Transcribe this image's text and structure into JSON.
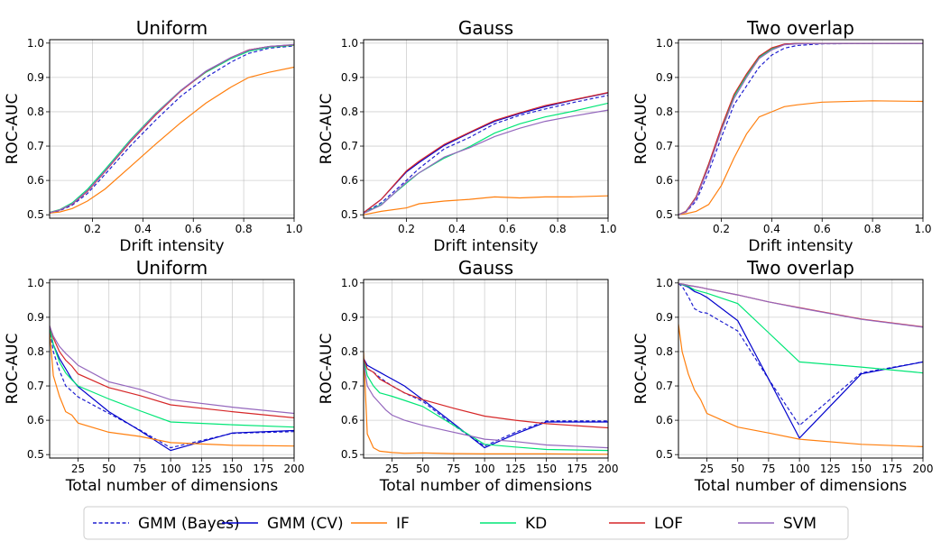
{
  "legend": {
    "location": "bottom-center",
    "entries": [
      {
        "key": "gmm_bayes",
        "label": "GMM (Bayes)",
        "color": "#1f1fd0",
        "dashed": true
      },
      {
        "key": "gmm_cv",
        "label": "GMM (CV)",
        "color": "#0000cc",
        "dashed": false
      },
      {
        "key": "if",
        "label": "IF",
        "color": "#ff7f0e",
        "dashed": false
      },
      {
        "key": "kd",
        "label": "KD",
        "color": "#00e676",
        "dashed": false
      },
      {
        "key": "lof",
        "label": "LOF",
        "color": "#d62728",
        "dashed": false
      },
      {
        "key": "svm",
        "label": "SVM",
        "color": "#9467bd",
        "dashed": false
      }
    ]
  },
  "chart_data": [
    {
      "type": "line",
      "title": "Uniform",
      "xlabel": "Drift intensity",
      "ylabel": "ROC-AUC",
      "xlim": [
        0.03,
        1.0
      ],
      "ylim": [
        0.49,
        1.01
      ],
      "grid": true,
      "xticks": [
        0.2,
        0.4,
        0.6,
        0.8,
        1.0
      ],
      "xtick_labels": [
        "0.2",
        "0.4",
        "0.6",
        "0.8",
        "1.0"
      ],
      "yticks": [
        0.5,
        0.6,
        0.7,
        0.8,
        0.9,
        1.0
      ],
      "ytick_labels": [
        "0.5",
        "0.6",
        "0.7",
        "0.8",
        "0.9",
        "1.0"
      ],
      "x": [
        0.03,
        0.07,
        0.12,
        0.18,
        0.25,
        0.35,
        0.45,
        0.55,
        0.65,
        0.75,
        0.82,
        0.9,
        1.0
      ],
      "series": [
        {
          "key": "gmm_bayes",
          "values": [
            0.505,
            0.512,
            0.528,
            0.562,
            0.618,
            0.7,
            0.775,
            0.845,
            0.9,
            0.945,
            0.97,
            0.985,
            0.992
          ]
        },
        {
          "key": "gmm_cv",
          "values": [
            0.506,
            0.514,
            0.532,
            0.57,
            0.628,
            0.715,
            0.792,
            0.862,
            0.918,
            0.958,
            0.98,
            0.99,
            0.995
          ]
        },
        {
          "key": "if",
          "values": [
            0.505,
            0.508,
            0.518,
            0.54,
            0.575,
            0.64,
            0.705,
            0.768,
            0.825,
            0.872,
            0.9,
            0.915,
            0.93
          ]
        },
        {
          "key": "kd",
          "values": [
            0.507,
            0.515,
            0.535,
            0.574,
            0.632,
            0.718,
            0.795,
            0.862,
            0.915,
            0.955,
            0.976,
            0.988,
            0.994
          ]
        },
        {
          "key": "lof",
          "values": [
            0.506,
            0.514,
            0.531,
            0.568,
            0.626,
            0.712,
            0.79,
            0.86,
            0.917,
            0.958,
            0.98,
            0.99,
            0.995
          ]
        },
        {
          "key": "svm",
          "values": [
            0.506,
            0.514,
            0.532,
            0.57,
            0.628,
            0.715,
            0.793,
            0.862,
            0.918,
            0.958,
            0.979,
            0.99,
            0.996
          ]
        }
      ]
    },
    {
      "type": "line",
      "title": "Gauss",
      "xlabel": "Drift intensity",
      "ylabel": "ROC-AUC",
      "xlim": [
        0.03,
        1.0
      ],
      "ylim": [
        0.49,
        1.01
      ],
      "grid": true,
      "xticks": [
        0.2,
        0.4,
        0.6,
        0.8,
        1.0
      ],
      "xtick_labels": [
        "0.2",
        "0.4",
        "0.6",
        "0.8",
        "1.0"
      ],
      "yticks": [
        0.5,
        0.6,
        0.7,
        0.8,
        0.9,
        1.0
      ],
      "ytick_labels": [
        "0.5",
        "0.6",
        "0.7",
        "0.8",
        "0.9",
        "1.0"
      ],
      "x": [
        0.03,
        0.1,
        0.2,
        0.25,
        0.35,
        0.45,
        0.55,
        0.65,
        0.75,
        0.85,
        1.0
      ],
      "series": [
        {
          "key": "gmm_bayes",
          "values": [
            0.505,
            0.535,
            0.6,
            0.635,
            0.692,
            0.725,
            0.765,
            0.79,
            0.808,
            0.825,
            0.848
          ]
        },
        {
          "key": "gmm_cv",
          "values": [
            0.506,
            0.545,
            0.625,
            0.652,
            0.702,
            0.738,
            0.772,
            0.795,
            0.815,
            0.832,
            0.855
          ]
        },
        {
          "key": "if",
          "values": [
            0.5,
            0.51,
            0.52,
            0.532,
            0.54,
            0.545,
            0.552,
            0.549,
            0.552,
            0.552,
            0.555
          ]
        },
        {
          "key": "kd",
          "values": [
            0.505,
            0.53,
            0.592,
            0.622,
            0.665,
            0.698,
            0.738,
            0.765,
            0.785,
            0.8,
            0.825
          ]
        },
        {
          "key": "lof",
          "values": [
            0.506,
            0.545,
            0.628,
            0.656,
            0.705,
            0.74,
            0.775,
            0.797,
            0.818,
            0.833,
            0.856
          ]
        },
        {
          "key": "svm",
          "values": [
            0.504,
            0.528,
            0.595,
            0.622,
            0.668,
            0.695,
            0.728,
            0.752,
            0.772,
            0.786,
            0.805
          ]
        }
      ]
    },
    {
      "type": "line",
      "title": "Two overlap",
      "xlabel": "Drift intensity",
      "ylabel": "ROC-AUC",
      "xlim": [
        0.03,
        1.0
      ],
      "ylim": [
        0.49,
        1.01
      ],
      "grid": true,
      "xticks": [
        0.2,
        0.4,
        0.6,
        0.8,
        1.0
      ],
      "xtick_labels": [
        "0.2",
        "0.4",
        "0.6",
        "0.8",
        "1.0"
      ],
      "yticks": [
        0.5,
        0.6,
        0.7,
        0.8,
        0.9,
        1.0
      ],
      "ytick_labels": [
        "0.5",
        "0.6",
        "0.7",
        "0.8",
        "0.9",
        "1.0"
      ],
      "x": [
        0.03,
        0.06,
        0.1,
        0.15,
        0.2,
        0.25,
        0.3,
        0.35,
        0.4,
        0.45,
        0.5,
        0.6,
        0.8,
        1.0
      ],
      "series": [
        {
          "key": "gmm_bayes",
          "values": [
            0.5,
            0.508,
            0.54,
            0.625,
            0.725,
            0.82,
            0.875,
            0.93,
            0.965,
            0.985,
            0.993,
            0.998,
            0.999,
            0.999
          ]
        },
        {
          "key": "gmm_cv",
          "values": [
            0.5,
            0.51,
            0.55,
            0.645,
            0.75,
            0.845,
            0.908,
            0.96,
            0.985,
            0.997,
            0.999,
            0.999,
            0.999,
            0.999
          ]
        },
        {
          "key": "if",
          "values": [
            0.5,
            0.503,
            0.51,
            0.53,
            0.585,
            0.665,
            0.735,
            0.785,
            0.8,
            0.815,
            0.82,
            0.828,
            0.832,
            0.83
          ]
        },
        {
          "key": "kd",
          "values": [
            0.5,
            0.51,
            0.552,
            0.648,
            0.752,
            0.845,
            0.905,
            0.958,
            0.983,
            0.996,
            0.999,
            0.999,
            0.999,
            0.999
          ]
        },
        {
          "key": "lof",
          "values": [
            0.5,
            0.51,
            0.552,
            0.648,
            0.755,
            0.85,
            0.91,
            0.962,
            0.986,
            0.997,
            0.999,
            0.999,
            0.999,
            0.999
          ]
        },
        {
          "key": "svm",
          "values": [
            0.5,
            0.508,
            0.548,
            0.64,
            0.745,
            0.838,
            0.9,
            0.955,
            0.98,
            0.995,
            0.998,
            0.999,
            0.999,
            0.999
          ]
        }
      ]
    },
    {
      "type": "line",
      "title": "Uniform",
      "xlabel": "Total number of dimensions",
      "ylabel": "ROC-AUC",
      "xlim": [
        2,
        200
      ],
      "ylim": [
        0.49,
        1.01
      ],
      "grid": true,
      "xticks": [
        25,
        50,
        75,
        100,
        125,
        150,
        175,
        200
      ],
      "xtick_labels": [
        "25",
        "50",
        "75",
        "100",
        "125",
        "150",
        "175",
        "200"
      ],
      "yticks": [
        0.5,
        0.6,
        0.7,
        0.8,
        0.9,
        1.0
      ],
      "ytick_labels": [
        "0.5",
        "0.6",
        "0.7",
        "0.8",
        "0.9",
        "1.0"
      ],
      "x": [
        2,
        5,
        10,
        15,
        20,
        25,
        50,
        75,
        100,
        150,
        200
      ],
      "series": [
        {
          "key": "gmm_bayes",
          "values": [
            0.87,
            0.8,
            0.745,
            0.7,
            0.685,
            0.668,
            0.62,
            0.572,
            0.52,
            0.562,
            0.567
          ]
        },
        {
          "key": "gmm_cv",
          "values": [
            0.87,
            0.82,
            0.78,
            0.75,
            0.72,
            0.698,
            0.625,
            0.57,
            0.512,
            0.563,
            0.57
          ]
        },
        {
          "key": "if",
          "values": [
            0.86,
            0.73,
            0.67,
            0.625,
            0.615,
            0.592,
            0.565,
            0.553,
            0.535,
            0.527,
            0.525
          ]
        },
        {
          "key": "kd",
          "values": [
            0.87,
            0.82,
            0.77,
            0.738,
            0.718,
            0.7,
            0.662,
            0.628,
            0.595,
            0.587,
            0.58
          ]
        },
        {
          "key": "lof",
          "values": [
            0.875,
            0.84,
            0.8,
            0.775,
            0.758,
            0.735,
            0.695,
            0.672,
            0.645,
            0.625,
            0.607
          ]
        },
        {
          "key": "svm",
          "values": [
            0.875,
            0.845,
            0.815,
            0.795,
            0.778,
            0.76,
            0.712,
            0.69,
            0.66,
            0.638,
            0.62
          ]
        }
      ]
    },
    {
      "type": "line",
      "title": "Gauss",
      "xlabel": "Total number of dimensions",
      "ylabel": "ROC-AUC",
      "xlim": [
        2,
        200
      ],
      "ylim": [
        0.49,
        1.01
      ],
      "grid": true,
      "xticks": [
        25,
        50,
        75,
        100,
        125,
        150,
        175,
        200
      ],
      "xtick_labels": [
        "25",
        "50",
        "75",
        "100",
        "125",
        "150",
        "175",
        "200"
      ],
      "yticks": [
        0.5,
        0.6,
        0.7,
        0.8,
        0.9,
        1.0
      ],
      "ytick_labels": [
        "0.5",
        "0.6",
        "0.7",
        "0.8",
        "0.9",
        "1.0"
      ],
      "x": [
        2,
        5,
        10,
        15,
        20,
        25,
        35,
        50,
        75,
        100,
        125,
        150,
        200
      ],
      "series": [
        {
          "key": "gmm_bayes",
          "values": [
            0.78,
            0.75,
            0.74,
            0.725,
            0.712,
            0.7,
            0.68,
            0.655,
            0.585,
            0.525,
            0.565,
            0.598,
            0.598
          ]
        },
        {
          "key": "gmm_cv",
          "values": [
            0.78,
            0.76,
            0.75,
            0.74,
            0.73,
            0.72,
            0.7,
            0.66,
            0.59,
            0.52,
            0.56,
            0.595,
            0.595
          ]
        },
        {
          "key": "if",
          "values": [
            0.8,
            0.56,
            0.52,
            0.51,
            0.508,
            0.506,
            0.504,
            0.505,
            0.503,
            0.502,
            0.502,
            0.502,
            0.501
          ]
        },
        {
          "key": "kd",
          "values": [
            0.78,
            0.73,
            0.7,
            0.68,
            0.675,
            0.67,
            0.658,
            0.64,
            0.585,
            0.53,
            0.522,
            0.515,
            0.512
          ]
        },
        {
          "key": "lof",
          "values": [
            0.78,
            0.75,
            0.74,
            0.72,
            0.71,
            0.7,
            0.68,
            0.66,
            0.635,
            0.612,
            0.6,
            0.59,
            0.578
          ]
        },
        {
          "key": "svm",
          "values": [
            0.77,
            0.7,
            0.67,
            0.65,
            0.63,
            0.615,
            0.6,
            0.585,
            0.565,
            0.545,
            0.538,
            0.528,
            0.52
          ]
        }
      ]
    },
    {
      "type": "line",
      "title": "Two overlap",
      "xlabel": "Total number of dimensions",
      "ylabel": "ROC-AUC",
      "xlim": [
        2,
        200
      ],
      "ylim": [
        0.49,
        1.01
      ],
      "grid": true,
      "xticks": [
        25,
        50,
        75,
        100,
        125,
        150,
        175,
        200
      ],
      "xtick_labels": [
        "25",
        "50",
        "75",
        "100",
        "125",
        "150",
        "175",
        "200"
      ],
      "yticks": [
        0.5,
        0.6,
        0.7,
        0.8,
        0.9,
        1.0
      ],
      "ytick_labels": [
        "0.5",
        "0.6",
        "0.7",
        "0.8",
        "0.9",
        "1.0"
      ],
      "x": [
        2,
        5,
        10,
        15,
        20,
        25,
        50,
        75,
        100,
        150,
        200
      ],
      "series": [
        {
          "key": "gmm_bayes",
          "values": [
            0.998,
            0.99,
            0.96,
            0.925,
            0.915,
            0.912,
            0.86,
            0.72,
            0.585,
            0.738,
            0.77
          ]
        },
        {
          "key": "gmm_cv",
          "values": [
            0.998,
            0.995,
            0.988,
            0.975,
            0.968,
            0.958,
            0.89,
            0.72,
            0.548,
            0.735,
            0.77
          ]
        },
        {
          "key": "if",
          "values": [
            0.88,
            0.8,
            0.735,
            0.688,
            0.66,
            0.62,
            0.58,
            0.563,
            0.545,
            0.53,
            0.523
          ]
        },
        {
          "key": "kd",
          "values": [
            0.998,
            0.995,
            0.99,
            0.98,
            0.975,
            0.97,
            0.94,
            0.855,
            0.77,
            0.755,
            0.738
          ]
        },
        {
          "key": "lof",
          "values": [
            0.998,
            0.997,
            0.993,
            0.99,
            0.987,
            0.983,
            0.965,
            0.945,
            0.928,
            0.895,
            0.872
          ]
        },
        {
          "key": "svm",
          "values": [
            0.998,
            0.997,
            0.993,
            0.99,
            0.987,
            0.983,
            0.965,
            0.945,
            0.927,
            0.894,
            0.871
          ]
        }
      ]
    }
  ]
}
